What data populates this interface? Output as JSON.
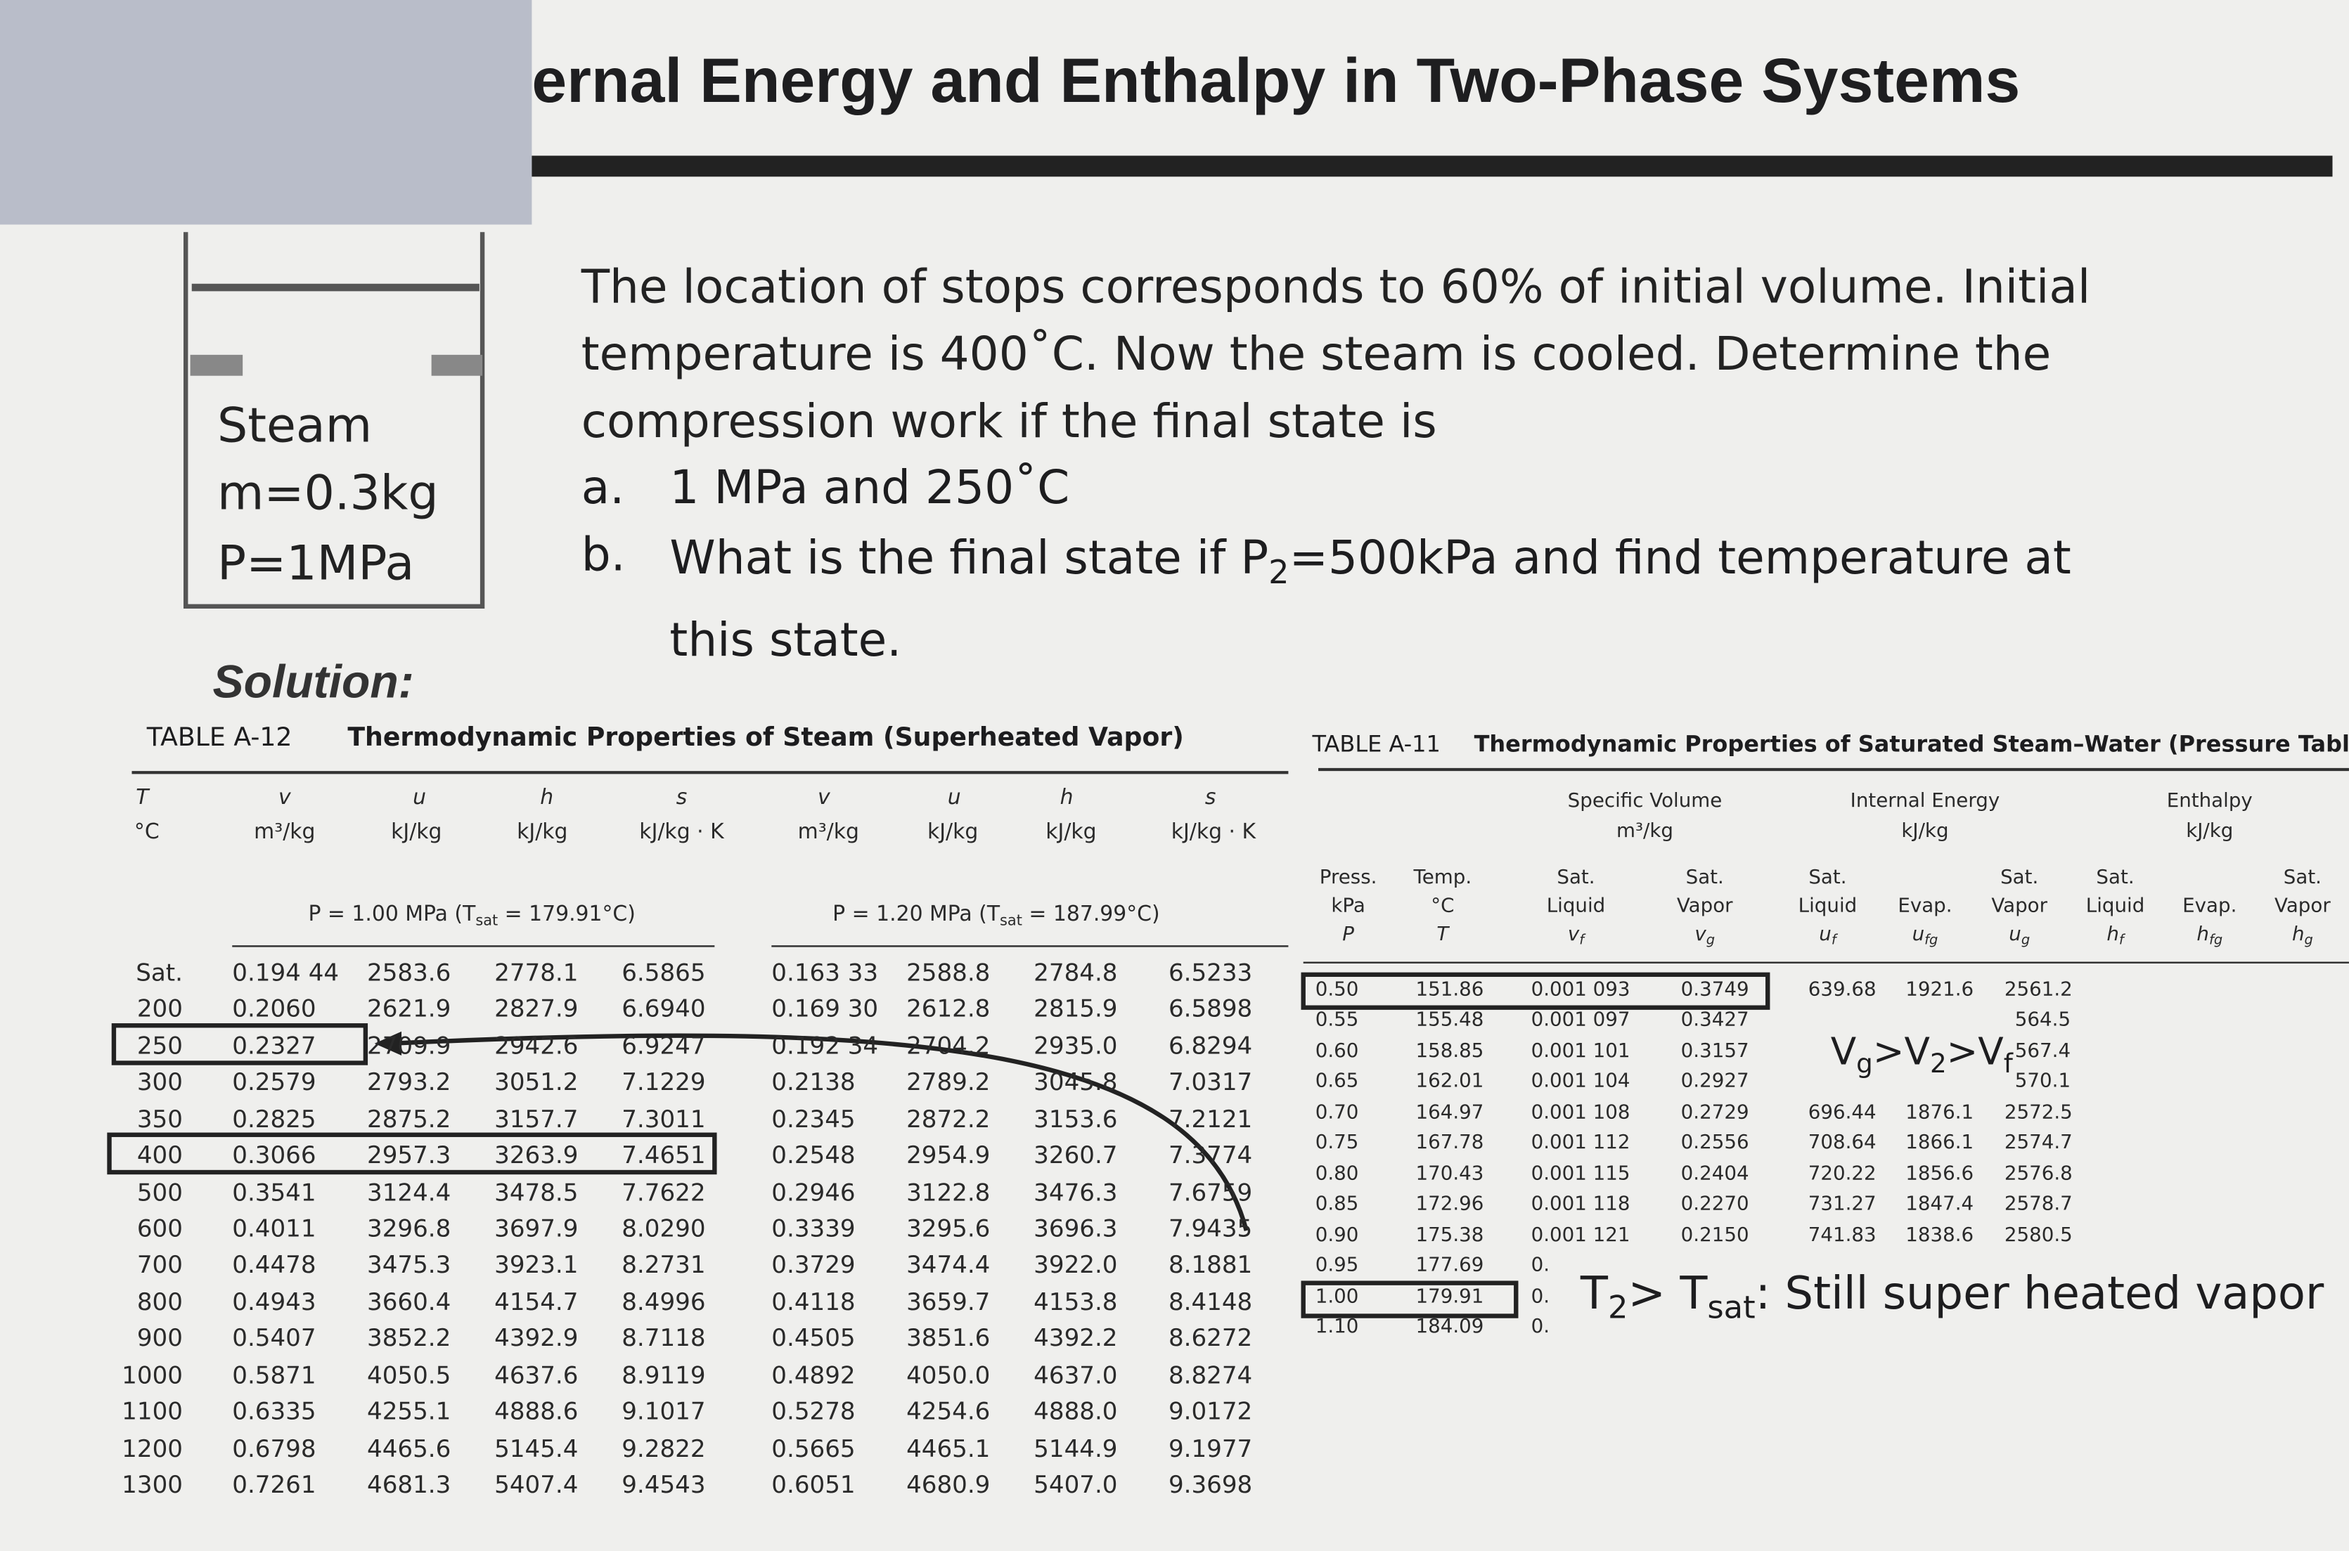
{
  "header": {
    "title": "ernal Energy and Enthalpy in Two-Phase Systems"
  },
  "figure": {
    "labels": [
      "Steam",
      "m=0.3kg",
      "P=1MPa"
    ]
  },
  "problem": {
    "text": "The location of stops corresponds to 60% of initial volume. Initial temperature is 400˚C. Now the steam is cooled. Determine the compression work if the final state is",
    "items": [
      {
        "marker": "a.",
        "text": [
          "1 MPa and 250˚C"
        ]
      },
      {
        "marker": "b.",
        "text": [
          "What is the final state if P",
          "2",
          "=500kPa and find temperature at this state."
        ]
      }
    ]
  },
  "solution": "Solution:",
  "table_a12": {
    "label": "TABLE A-12",
    "caption": "Thermodynamic Properties of Steam (Superheated Vapor)",
    "symbols": [
      "T",
      "v",
      "u",
      "h",
      "s",
      "v",
      "u",
      "h",
      "s"
    ],
    "units": [
      "°C",
      "m³/kg",
      "kJ/kg",
      "kJ/kg",
      "kJ/kg · K",
      "m³/kg",
      "kJ/kg",
      "kJ/kg",
      "kJ/kg · K"
    ],
    "groups": [
      [
        "P = 1.00 MPa (T",
        "sat",
        " = 179.91°C)"
      ],
      [
        "P = 1.20 MPa (T",
        "sat",
        " = 187.99°C)"
      ]
    ],
    "rows": [
      [
        "Sat.",
        "0.194 44",
        "2583.6",
        "2778.1",
        "6.5865",
        "0.163 33",
        "2588.8",
        "2784.8",
        "6.5233"
      ],
      [
        "200",
        "0.2060",
        "2621.9",
        "2827.9",
        "6.6940",
        "0.169 30",
        "2612.8",
        "2815.9",
        "6.5898"
      ],
      [
        "250",
        "0.2327",
        "2709.9",
        "2942.6",
        "6.9247",
        "0.192 34",
        "2704.2",
        "2935.0",
        "6.8294"
      ],
      [
        "300",
        "0.2579",
        "2793.2",
        "3051.2",
        "7.1229",
        "0.2138",
        "2789.2",
        "3045.8",
        "7.0317"
      ],
      [
        "350",
        "0.2825",
        "2875.2",
        "3157.7",
        "7.3011",
        "0.2345",
        "2872.2",
        "3153.6",
        "7.2121"
      ],
      [
        "400",
        "0.3066",
        "2957.3",
        "3263.9",
        "7.4651",
        "0.2548",
        "2954.9",
        "3260.7",
        "7.3774"
      ],
      [
        "500",
        "0.3541",
        "3124.4",
        "3478.5",
        "7.7622",
        "0.2946",
        "3122.8",
        "3476.3",
        "7.6759"
      ],
      [
        "600",
        "0.4011",
        "3296.8",
        "3697.9",
        "8.0290",
        "0.3339",
        "3295.6",
        "3696.3",
        "7.9435"
      ],
      [
        "700",
        "0.4478",
        "3475.3",
        "3923.1",
        "8.2731",
        "0.3729",
        "3474.4",
        "3922.0",
        "8.1881"
      ],
      [
        "800",
        "0.4943",
        "3660.4",
        "4154.7",
        "8.4996",
        "0.4118",
        "3659.7",
        "4153.8",
        "8.4148"
      ],
      [
        "900",
        "0.5407",
        "3852.2",
        "4392.9",
        "8.7118",
        "0.4505",
        "3851.6",
        "4392.2",
        "8.6272"
      ],
      [
        "1000",
        "0.5871",
        "4050.5",
        "4637.6",
        "8.9119",
        "0.4892",
        "4050.0",
        "4637.0",
        "8.8274"
      ],
      [
        "1100",
        "0.6335",
        "4255.1",
        "4888.6",
        "9.1017",
        "0.5278",
        "4254.6",
        "4888.0",
        "9.0172"
      ],
      [
        "1200",
        "0.6798",
        "4465.6",
        "5145.4",
        "9.2822",
        "0.5665",
        "4465.1",
        "5144.9",
        "9.1977"
      ],
      [
        "1300",
        "0.7261",
        "4681.3",
        "5407.4",
        "9.4543",
        "0.6051",
        "4680.9",
        "5407.0",
        "9.3698"
      ]
    ]
  },
  "table_a11": {
    "label": "TABLE A-11",
    "caption": "Thermodynamic Properties of Saturated Steam–Water (Pressure Table)",
    "groups": [
      {
        "title": "Specific Volume",
        "unit": "m³/kg"
      },
      {
        "title": "Internal Energy",
        "unit": "kJ/kg"
      },
      {
        "title": "Enthalpy",
        "unit": "kJ/kg"
      }
    ],
    "column_headers": [
      {
        "lines": [
          "Press.",
          "kPa"
        ],
        "symbol": [
          "P"
        ]
      },
      {
        "lines": [
          "Temp.",
          "°C"
        ],
        "symbol": [
          "T"
        ]
      },
      {
        "lines": [
          "Sat.",
          "Liquid"
        ],
        "symbol": [
          "v",
          "f"
        ]
      },
      {
        "lines": [
          "Sat.",
          "Vapor"
        ],
        "symbol": [
          "v",
          "g"
        ]
      },
      {
        "lines": [
          "Sat.",
          "Liquid"
        ],
        "symbol": [
          "u",
          "f"
        ]
      },
      {
        "lines": [
          "Evap."
        ],
        "symbol": [
          "u",
          "fg"
        ]
      },
      {
        "lines": [
          "Sat.",
          "Vapor"
        ],
        "symbol": [
          "u",
          "g"
        ]
      },
      {
        "lines": [
          "Sat.",
          "Liquid"
        ],
        "symbol": [
          "h",
          "f"
        ]
      },
      {
        "lines": [
          "Evap."
        ],
        "symbol": [
          "h",
          "fg"
        ]
      },
      {
        "lines": [
          "Sat.",
          "Vapor"
        ],
        "symbol": [
          "h",
          "g"
        ]
      }
    ],
    "rows": [
      [
        "0.50",
        "151.86",
        "0.001 093",
        "0.3749",
        "639.68",
        "1921.6",
        "2561.2"
      ],
      [
        "0.55",
        "155.48",
        "0.001 097",
        "0.3427",
        null,
        null,
        "564.5"
      ],
      [
        "0.60",
        "158.85",
        "0.001 101",
        "0.3157",
        null,
        null,
        "567.4"
      ],
      [
        "0.65",
        "162.01",
        "0.001 104",
        "0.2927",
        null,
        null,
        "570.1"
      ],
      [
        "0.70",
        "164.97",
        "0.001 108",
        "0.2729",
        "696.44",
        "1876.1",
        "2572.5"
      ],
      [
        "0.75",
        "167.78",
        "0.001 112",
        "0.2556",
        "708.64",
        "1866.1",
        "2574.7"
      ],
      [
        "0.80",
        "170.43",
        "0.001 115",
        "0.2404",
        "720.22",
        "1856.6",
        "2576.8"
      ],
      [
        "0.85",
        "172.96",
        "0.001 118",
        "0.2270",
        "731.27",
        "1847.4",
        "2578.7"
      ],
      [
        "0.90",
        "175.38",
        "0.001 121",
        "0.2150",
        "741.83",
        "1838.6",
        "2580.5"
      ],
      [
        "0.95",
        "177.69",
        "0."
      ],
      [
        "1.00",
        "179.91",
        "0."
      ],
      [
        "1.10",
        "184.09",
        "0."
      ]
    ]
  },
  "annotations": {
    "volume_order": [
      "V",
      "g",
      ">V",
      "2",
      ">V",
      "f"
    ],
    "conclusion": [
      "T",
      "2",
      "> T",
      "sat",
      ": Still super heated vapor"
    ]
  }
}
